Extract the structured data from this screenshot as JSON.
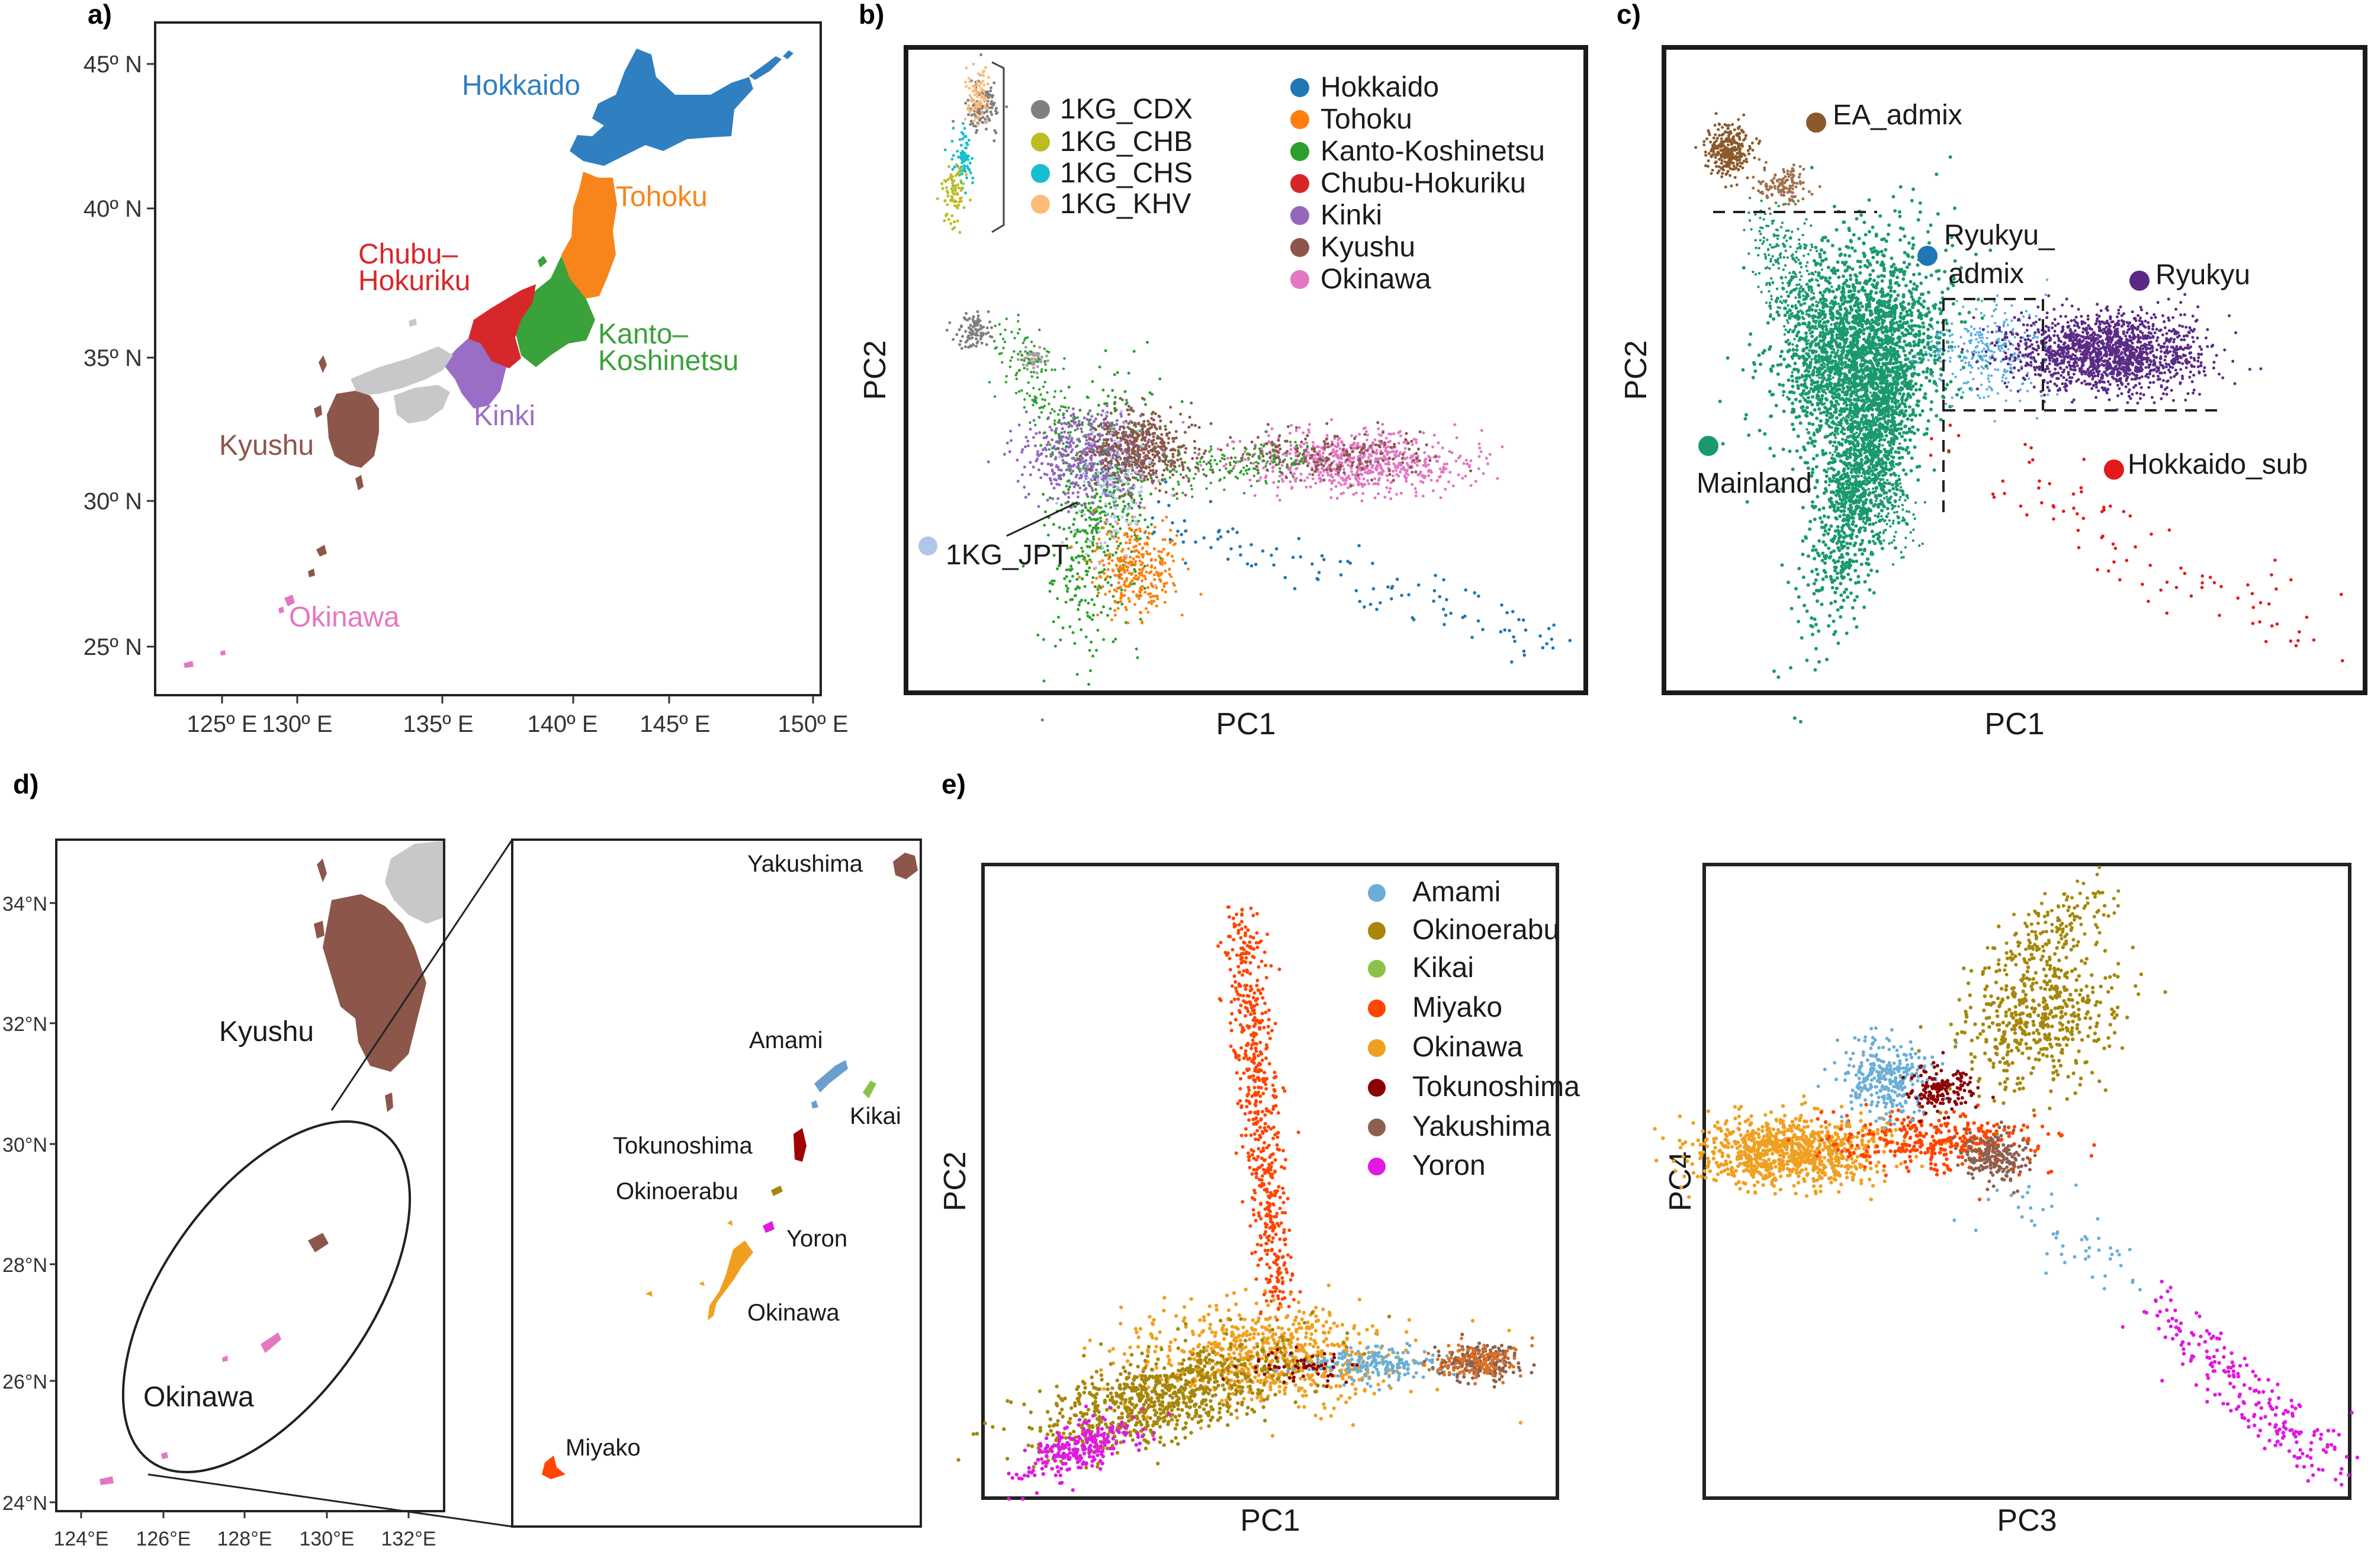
{
  "panels": {
    "a": "a)",
    "b": "b)",
    "c": "c)",
    "d": "d)",
    "e": "e)"
  },
  "map_a": {
    "lat_ticks": [
      "45º N",
      "40º N",
      "35º N",
      "30º N",
      "25º N"
    ],
    "lon_ticks": [
      "125º E",
      "130º E",
      "135º E",
      "140º E",
      "145º E",
      "150º E"
    ],
    "regions": [
      {
        "name": "Hokkaido",
        "color": "#2f7fc1"
      },
      {
        "name": "Tohoku",
        "color": "#f7851b"
      },
      {
        "name": "Chubu–\nHokuriku",
        "color": "#d6282b"
      },
      {
        "name": "Kanto–\nKoshinetsu",
        "color": "#3aa23a"
      },
      {
        "name": "Kinki",
        "color": "#9b6ec6"
      },
      {
        "name": "Kyushu",
        "color": "#8c564b"
      },
      {
        "name": "Okinawa",
        "color": "#e377c2"
      }
    ],
    "labels": {
      "hokkaido": "Hokkaido",
      "tohoku": "Tohoku",
      "chubu_1": "Chubu–",
      "chubu_2": "Hokuriku",
      "kanto_1": "Kanto–",
      "kanto_2": "Koshinetsu",
      "kinki": "Kinki",
      "kyushu": "Kyushu",
      "okinawa": "Okinawa"
    }
  },
  "chart_data": [
    {
      "id": "b",
      "type": "scatter",
      "xlabel": "PC1",
      "ylabel": "PC2",
      "legend_1kg": [
        {
          "name": "1KG_CDX",
          "color": "#7f7f7f"
        },
        {
          "name": "1KG_CHB",
          "color": "#bcbd22"
        },
        {
          "name": "1KG_CHS",
          "color": "#17becf"
        },
        {
          "name": "1KG_KHV",
          "color": "#ffbb78"
        }
      ],
      "legend_regions": [
        {
          "name": "Hokkaido",
          "color": "#1f77b4"
        },
        {
          "name": "Tohoku",
          "color": "#ff7f0e"
        },
        {
          "name": "Kanto-Koshinetsu",
          "color": "#2ca02c"
        },
        {
          "name": "Chubu-Hokuriku",
          "color": "#d62728"
        },
        {
          "name": "Kinki",
          "color": "#9467bd"
        },
        {
          "name": "Kyushu",
          "color": "#8c564b"
        },
        {
          "name": "Okinawa",
          "color": "#e377c2"
        }
      ],
      "annotation": {
        "name": "1KG_JPT",
        "color": "#aec7e8"
      }
    },
    {
      "id": "c",
      "type": "scatter",
      "xlabel": "PC1",
      "ylabel": "PC2",
      "groups": [
        {
          "name": "EA_admix",
          "color": "#8b5a2b"
        },
        {
          "name": "Ryukyu_\nadmix",
          "color": "#1f77b4"
        },
        {
          "name": "Ryukyu",
          "color": "#5b2a86"
        },
        {
          "name": "Mainland",
          "color": "#1a9a6c"
        },
        {
          "name": "Hokkaido_sub",
          "color": "#e31a1c"
        }
      ],
      "labels": {
        "ea": "EA_admix",
        "ryukyu_admix_1": "Ryukyu_",
        "ryukyu_admix_2": "admix",
        "ryukyu": "Ryukyu",
        "mainland": "Mainland",
        "hokkaido_sub": "Hokkaido_sub"
      }
    },
    {
      "id": "e1",
      "type": "scatter",
      "xlabel": "PC1",
      "ylabel": "PC2",
      "legend": [
        {
          "name": "Amami",
          "color": "#6baed6"
        },
        {
          "name": "Okinoerabu",
          "color": "#a6870b"
        },
        {
          "name": "Kikai",
          "color": "#8bc34a"
        },
        {
          "name": "Miyako",
          "color": "#ff4500"
        },
        {
          "name": "Okinawa",
          "color": "#f0a020"
        },
        {
          "name": "Tokunoshima",
          "color": "#8b0000"
        },
        {
          "name": "Yakushima",
          "color": "#8c6050"
        },
        {
          "name": "Yoron",
          "color": "#e01ae0"
        }
      ]
    },
    {
      "id": "e2",
      "type": "scatter",
      "xlabel": "PC3",
      "ylabel": "PC4"
    }
  ],
  "map_d": {
    "lat_ticks": [
      "34°N",
      "32°N",
      "30°N",
      "28°N",
      "26°N",
      "24°N"
    ],
    "lon_ticks": [
      "124°E",
      "126°E",
      "128°E",
      "130°E",
      "132°E"
    ],
    "labels": {
      "kyushu": "Kyushu",
      "okinawa": "Okinawa"
    },
    "islands": [
      {
        "name": "Yakushima",
        "color": "#8c564b"
      },
      {
        "name": "Amami",
        "color": "#6a9fd0"
      },
      {
        "name": "Kikai",
        "color": "#8bc34a"
      },
      {
        "name": "Tokunoshima",
        "color": "#a00000"
      },
      {
        "name": "Okinoerabu",
        "color": "#a6870b"
      },
      {
        "name": "Yoron",
        "color": "#e01ae0"
      },
      {
        "name": "Okinawa",
        "color": "#f0a020"
      },
      {
        "name": "Miyako",
        "color": "#ff4500"
      }
    ]
  },
  "colors": {
    "grey_land": "#c8c8c8",
    "frame": "#1a1a1a"
  }
}
